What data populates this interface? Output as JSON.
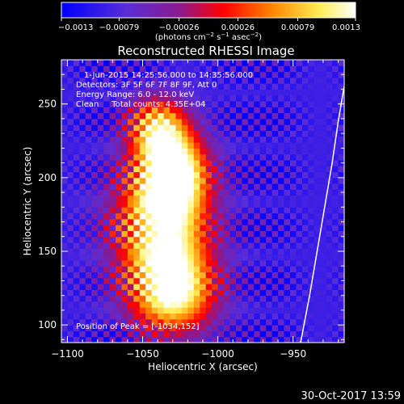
{
  "chart_data": {
    "type": "heatmap",
    "title": "Reconstructed RHESSI Image",
    "xlabel": "Heliocentric X (arcsec)",
    "ylabel": "Heliocentric Y (arcsec)",
    "xlim": [
      -1104,
      -916
    ],
    "ylim": [
      88,
      280
    ],
    "x_ticks": [
      {
        "value": -1100,
        "label": "−1100"
      },
      {
        "value": -1050,
        "label": "−1050"
      },
      {
        "value": -1000,
        "label": "−1000"
      },
      {
        "value": -950,
        "label": "−950"
      }
    ],
    "y_ticks": [
      {
        "value": 100,
        "label": "100"
      },
      {
        "value": 150,
        "label": "150"
      },
      {
        "value": 200,
        "label": "200"
      },
      {
        "value": 250,
        "label": "250"
      }
    ],
    "colorbar": {
      "range": [
        -0.0013,
        0.0013
      ],
      "ticks": [
        {
          "value": -0.0013,
          "label": "−0.0013"
        },
        {
          "value": -0.00079,
          "label": "−0.00079"
        },
        {
          "value": -0.00026,
          "label": "−0.00026"
        },
        {
          "value": 0.00026,
          "label": "0.00026"
        },
        {
          "value": 0.00079,
          "label": "0.00079"
        },
        {
          "value": 0.0013,
          "label": "0.0013"
        }
      ],
      "unit_main": "(photons cm",
      "unit_sup1": "−2",
      "unit_mid": " s",
      "unit_sup2": "−1",
      "unit_mid2": " asec",
      "unit_sup3": "−2",
      "unit_end": ")"
    },
    "info_lines": [
      "1-Jun-2015 14:25:56.000 to 14:35:56.000",
      "Detectors: 3F 5F 6F 7F 8F 9F, Att 0",
      "Energy Range: 6.0 - 12.0 keV",
      "Clean     Total counts: 4.35E+04"
    ],
    "peak_label": "Position of Peak = [-1034,152]",
    "peak": {
      "x": -1034,
      "y": 152,
      "value": 0.0013
    },
    "emission_sources": [
      {
        "x": -1030,
        "y": 205,
        "amplitude": 0.0012,
        "sigma_x": 16,
        "sigma_y": 18
      },
      {
        "x": -1037,
        "y": 168,
        "amplitude": 0.00125,
        "sigma_x": 22,
        "sigma_y": 28
      },
      {
        "x": -1030,
        "y": 122,
        "amplitude": 0.0011,
        "sigma_x": 20,
        "sigma_y": 20
      },
      {
        "x": -1040,
        "y": 235,
        "amplitude": 0.0008,
        "sigma_x": 14,
        "sigma_y": 14
      }
    ],
    "background_value": -0.0009,
    "limb_curve": [
      [
        -945,
        88
      ],
      [
        -939,
        120
      ],
      [
        -934,
        150
      ],
      [
        -929,
        180
      ],
      [
        -924,
        210
      ],
      [
        -920,
        238
      ],
      [
        -916,
        262
      ]
    ],
    "colors": {
      "background": "#000000",
      "foreground": "#ffffff",
      "colormap": [
        "#0000ff",
        "#5a2dd8",
        "#8a1a90",
        "#ff0000",
        "#ff8800",
        "#ffee55",
        "#ffffff"
      ]
    }
  },
  "footer": {
    "timestamp": "30-Oct-2017 13:59"
  }
}
